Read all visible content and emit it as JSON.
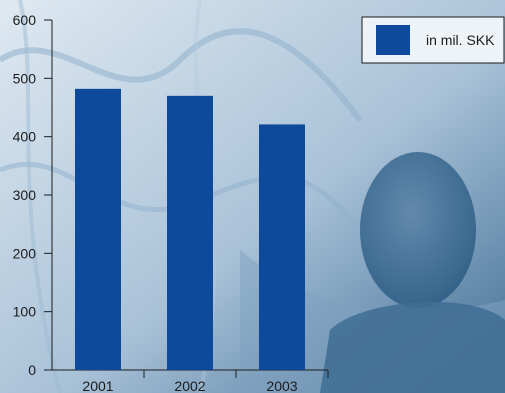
{
  "colors": {
    "bar": "#0d4a9c",
    "background_light": "#dfe9f1",
    "background_mid": "#a9c2d8",
    "background_dark": "#3f6d93",
    "axis": "#1c1c1c"
  },
  "chart_data": {
    "type": "bar",
    "categories": [
      "2001",
      "2002",
      "2003"
    ],
    "series": [
      {
        "name": "in mil. SKK",
        "values": [
          482,
          470,
          421
        ]
      }
    ],
    "title": "",
    "xlabel": "",
    "ylabel": "",
    "ylim": [
      0,
      600
    ],
    "yticks": [
      0,
      100,
      200,
      300,
      400,
      500,
      600
    ],
    "grid": false,
    "legend": {
      "placement": "top-right",
      "label": "in mil. SKK"
    }
  }
}
